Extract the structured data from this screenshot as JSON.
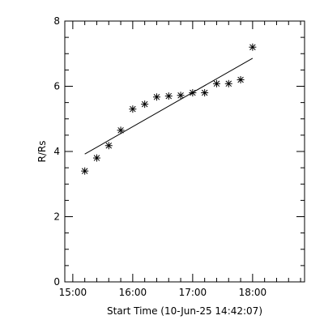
{
  "chart_data": {
    "type": "scatter",
    "xlabel": "Start Time (10-Jun-25 14:42:07)",
    "ylabel": "R/Rs",
    "xlim": [
      "14:52",
      "18:52"
    ],
    "ylim": [
      0,
      8
    ],
    "xticks": [
      {
        "value": "15:00",
        "label": "15:00"
      },
      {
        "value": "16:00",
        "label": "16:00"
      },
      {
        "value": "17:00",
        "label": "17:00"
      },
      {
        "value": "18:00",
        "label": "18:00"
      }
    ],
    "yticks": [
      0,
      2,
      4,
      6,
      8
    ],
    "grid": false,
    "points": [
      {
        "x": "15:12",
        "y": 3.4
      },
      {
        "x": "15:24",
        "y": 3.8
      },
      {
        "x": "15:36",
        "y": 4.18
      },
      {
        "x": "15:48",
        "y": 4.65
      },
      {
        "x": "16:00",
        "y": 5.3
      },
      {
        "x": "16:12",
        "y": 5.45
      },
      {
        "x": "16:24",
        "y": 5.67
      },
      {
        "x": "16:36",
        "y": 5.7
      },
      {
        "x": "16:48",
        "y": 5.72
      },
      {
        "x": "17:00",
        "y": 5.8
      },
      {
        "x": "17:12",
        "y": 5.8
      },
      {
        "x": "17:24",
        "y": 6.08
      },
      {
        "x": "17:36",
        "y": 6.08
      },
      {
        "x": "17:48",
        "y": 6.2
      },
      {
        "x": "18:00",
        "y": 7.2
      }
    ],
    "fit_line": [
      {
        "x": "15:12",
        "y": 3.92
      },
      {
        "x": "18:00",
        "y": 6.86
      }
    ],
    "marker": "asterisk",
    "colors": {
      "foreground": "#000000",
      "background": "#ffffff"
    }
  }
}
